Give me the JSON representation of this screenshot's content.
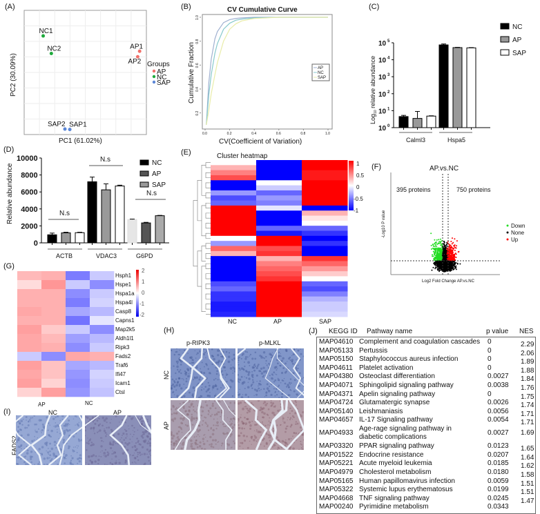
{
  "panels": {
    "A": "(A)",
    "B": "(B)",
    "C": "(C)",
    "D": "(D)",
    "E": "(E)",
    "F": "(F)",
    "G": "(G)",
    "H": "(H)",
    "I": "(I)",
    "J": "(J)"
  },
  "colors": {
    "AP": "#f0706a",
    "NC": "#1eaa3c",
    "SAP": "#5b86d6",
    "up": "#ff0000",
    "down": "#22dd22",
    "none": "#000000",
    "heat_high": "#ff0000",
    "heat_low": "#0000ff"
  },
  "chart_data": [
    {
      "id": "pca",
      "type": "scatter",
      "xlabel": "PC1 (61.02%)",
      "ylabel": "PC2 (30.09%)",
      "legend_title": "Groups",
      "legend": [
        "AP",
        "NC",
        "SAP"
      ],
      "legend_placement": "right",
      "grid": true,
      "points": [
        {
          "label": "NC1",
          "group": "NC",
          "x": -15,
          "y": 10
        },
        {
          "label": "NC2",
          "group": "NC",
          "x": -12,
          "y": 5.2
        },
        {
          "label": "AP1",
          "group": "AP",
          "x": 20.5,
          "y": 5.8
        },
        {
          "label": "AP2",
          "group": "AP",
          "x": 19.8,
          "y": 4.3
        },
        {
          "label": "SAP2",
          "group": "SAP",
          "x": -7,
          "y": -15.5
        },
        {
          "label": "SAP1",
          "group": "SAP",
          "x": -5.2,
          "y": -15.6
        }
      ],
      "xlim": [
        -22,
        23
      ],
      "ylim": [
        -17,
        17
      ]
    },
    {
      "id": "cv",
      "type": "line",
      "title": "CV Cumulative Curve",
      "xlabel": "CV(Coefficient of Variation)",
      "ylabel": "Cumulative Fraction",
      "xlim": [
        0,
        1
      ],
      "ylim": [
        0.1,
        1
      ],
      "xticks": [
        "0.0",
        "0.2",
        "0.4",
        "0.6",
        "0.8",
        "1.0"
      ],
      "yticks": [
        "0.2",
        "0.4",
        "0.6",
        "0.8",
        "1.0"
      ],
      "legend_placement": "right",
      "x": [
        0.01,
        0.03,
        0.05,
        0.08,
        0.1,
        0.15,
        0.2,
        0.25,
        0.3,
        0.4,
        0.6,
        1.0
      ],
      "series": [
        {
          "name": "AP",
          "color": "#9fb0d0",
          "values": [
            0.1,
            0.45,
            0.65,
            0.82,
            0.88,
            0.955,
            0.98,
            0.99,
            0.995,
            1,
            1,
            1
          ]
        },
        {
          "name": "NC",
          "color": "#86c9cc",
          "values": [
            0.1,
            0.35,
            0.52,
            0.7,
            0.78,
            0.9,
            0.95,
            0.975,
            0.985,
            0.995,
            1,
            1
          ]
        },
        {
          "name": "SAP",
          "color": "#e8eca8",
          "values": [
            0.1,
            0.22,
            0.36,
            0.52,
            0.62,
            0.8,
            0.9,
            0.945,
            0.97,
            0.99,
            1,
            1
          ]
        }
      ]
    },
    {
      "id": "log_bar",
      "type": "bar",
      "ylabel": "Log10 relative abundance",
      "yscale": "log",
      "ylim": [
        1,
        100000
      ],
      "yticks": [
        "10",
        "10",
        "10",
        "10",
        "10",
        "10"
      ],
      "ytick_exp": [
        "0",
        "1",
        "2",
        "3",
        "4",
        "5"
      ],
      "categories": [
        "Calml3",
        "Hspa5"
      ],
      "series": [
        {
          "name": "NC",
          "fill": "#000000",
          "values": [
            4.5,
            75000
          ],
          "errors": [
            5.3,
            85000
          ]
        },
        {
          "name": "AP",
          "fill": "#999999",
          "values": [
            3.5,
            52000
          ],
          "errors": [
            9,
            54000
          ]
        },
        {
          "name": "SAP",
          "fill": "#ffffff",
          "values": [
            4.8,
            50000
          ],
          "errors": [
            5.0,
            52000
          ]
        }
      ]
    },
    {
      "id": "abundance_bar",
      "type": "bar",
      "ylabel": "Relative abundance",
      "ylim": [
        0,
        10000
      ],
      "yticks": [
        "0",
        "2000",
        "4000",
        "6000",
        "8000",
        "10000"
      ],
      "categories": [
        "ACTB",
        "VDAC3",
        "G6PD"
      ],
      "significance": [
        "N.s",
        "N.s",
        "N.s"
      ],
      "legend": [
        {
          "name": "NC",
          "fill": "#000000"
        },
        {
          "name": "AP",
          "fill": "#555555"
        },
        {
          "name": "SAP",
          "fill": "#999999"
        }
      ],
      "bars": [
        [
          {
            "value": 950,
            "error": 1150,
            "fill": "#000000"
          },
          {
            "value": 1180,
            "error": 1250,
            "fill": "#999999"
          },
          {
            "value": 1200,
            "error": 1250,
            "fill": "#ffffff"
          }
        ],
        [
          {
            "value": 7200,
            "error": 7750,
            "fill": "#000000"
          },
          {
            "value": 6250,
            "error": 6950,
            "fill": "#999999"
          },
          {
            "value": 6700,
            "error": 6800,
            "fill": "#ffffff"
          }
        ],
        [
          {
            "value": 2750,
            "error": 2800,
            "fill": "#e6e6e6"
          },
          {
            "value": 2350,
            "error": 2420,
            "fill": "#555555"
          },
          {
            "value": 3200,
            "error": 3240,
            "fill": "#aaaaaa"
          }
        ]
      ]
    },
    {
      "id": "cluster_heatmap",
      "type": "heatmap",
      "title": "Cluster heatmap",
      "columns": [
        "NC",
        "AP",
        "SAP"
      ],
      "scale": [
        -1,
        1
      ],
      "scale_ticks": [
        "1",
        "0.5",
        "0",
        "-0.5",
        "-1"
      ],
      "rows": [
        [
          0,
          -1,
          1
        ],
        [
          0.3,
          -1,
          1
        ],
        [
          0.5,
          -1,
          0.9
        ],
        [
          0.7,
          -1,
          0.9
        ],
        [
          -1,
          0,
          1
        ],
        [
          -1,
          -0.2,
          1
        ],
        [
          -0.4,
          -0.6,
          1
        ],
        [
          -0.7,
          -0.4,
          1
        ],
        [
          -0.6,
          -0.5,
          1
        ],
        [
          1,
          -0.1,
          -1
        ],
        [
          1,
          -1,
          0.3
        ],
        [
          1,
          -1,
          0.1
        ],
        [
          1,
          -1,
          0
        ],
        [
          1,
          -0.6,
          -0.6
        ],
        [
          1,
          -0.9,
          -0.8
        ],
        [
          0,
          1,
          -1
        ],
        [
          -0.4,
          1,
          -0.8
        ],
        [
          0.6,
          0.7,
          -1
        ],
        [
          0.3,
          0.8,
          -1
        ],
        [
          -1,
          0.3,
          0.8
        ],
        [
          -1,
          0.5,
          0.6
        ],
        [
          -1,
          0.6,
          0.4
        ],
        [
          -1,
          0.7,
          0.2
        ],
        [
          -1,
          0.8,
          0
        ],
        [
          -0.7,
          1,
          -0.6
        ],
        [
          -0.6,
          1,
          -0.7
        ],
        [
          -0.8,
          1,
          -0.5
        ],
        [
          -0.8,
          1,
          -0.3
        ],
        [
          -0.9,
          1,
          -0.2
        ],
        [
          -0.9,
          1,
          -0.2
        ],
        [
          -0.85,
          1,
          -0.15
        ]
      ]
    },
    {
      "id": "volcano",
      "type": "scatter",
      "title": "AP.vs.NC",
      "xlabel": "Log2 Fold Change AP.vs.NC",
      "ylabel": "-Log10 P value",
      "annotations": [
        "395 proteins",
        "750 proteins"
      ],
      "legend": [
        "Down",
        "None",
        "Up"
      ],
      "legend_placement": "right",
      "down_count": 395,
      "up_count": 750
    },
    {
      "id": "gene_heatmap",
      "type": "heatmap",
      "scale": [
        -2,
        2
      ],
      "scale_ticks": [
        "2",
        "1",
        "0",
        "-1",
        "-2"
      ],
      "column_groups": [
        "AP",
        "NC"
      ],
      "genes": [
        "Hsph1",
        "Hspe1",
        "Hspa1a",
        "Hspa4l",
        "Casp8",
        "Capns1",
        "Map2k5",
        "Aldh1l1",
        "Ripk3",
        "Fads2",
        "Traf6",
        "Ifi47",
        "Icam1",
        "Ctsl"
      ],
      "values": [
        [
          0.8,
          0.9,
          -1.5,
          -0.6
        ],
        [
          0.4,
          1.2,
          -0.6,
          -1.3
        ],
        [
          0.9,
          0.9,
          -1.3,
          -0.6
        ],
        [
          0.9,
          0.9,
          -1.5,
          -0.5
        ],
        [
          1,
          0.9,
          -1.0,
          -0.8
        ],
        [
          0.9,
          0.9,
          -1.6,
          -0.3
        ],
        [
          1.1,
          0.6,
          -0.6,
          -1.3
        ],
        [
          1.0,
          0.8,
          -1.1,
          -0.8
        ],
        [
          1.0,
          0.9,
          -1.3,
          -0.6
        ],
        [
          -0.6,
          -1.3,
          1.0,
          0.9
        ],
        [
          1.1,
          0.7,
          -1.0,
          -0.8
        ],
        [
          1.0,
          0.7,
          -1.2,
          -0.5
        ],
        [
          1.1,
          0.5,
          -1.3,
          -0.6
        ],
        [
          0.5,
          1.1,
          -1.2,
          -0.7
        ]
      ]
    }
  ],
  "ihc_H": {
    "cols": [
      "p-RIPK3",
      "p-MLKL"
    ],
    "rows": [
      "NC",
      "AP"
    ]
  },
  "ihc_I": {
    "cols": [
      "NC",
      "AP"
    ],
    "row": "FADS2"
  },
  "kegg": {
    "headers": [
      "KEGG ID",
      "Pathway name",
      "p value",
      "NES"
    ],
    "rows": [
      [
        "MAP04610",
        "Complement and coagulation cascades",
        "0",
        "2.29"
      ],
      [
        "MAP05133",
        "Pertussis",
        "0",
        "2.06"
      ],
      [
        "MAP05150",
        "Staphylococcus aureus infection",
        "0",
        "1.89"
      ],
      [
        "MAP04611",
        "Platelet activation",
        "0",
        "1.88"
      ],
      [
        "MAP04380",
        "Osteoclast differentiation",
        "0.0027",
        "1.84"
      ],
      [
        "MAP04071",
        "Sphingolipid signaling pathway",
        "0.0038",
        "1.76"
      ],
      [
        "MAP04371",
        "Apelin signaling pathway",
        "0",
        "1.75"
      ],
      [
        "MAP04724",
        "Glutamatergic synapse",
        "0.0026",
        "1.74"
      ],
      [
        "MAP05140",
        "Leishmaniasis",
        "0.0056",
        "1.71"
      ],
      [
        "MAP04657",
        "IL-17 Signaling pathway",
        "0.0054",
        "1.71"
      ],
      [
        "MAP04933",
        "Age-rage signaling pathway in diabetic complications",
        "0.0027",
        "1.69"
      ],
      [
        "MAP03320",
        "PPAR signaling pathway",
        "0.0123",
        "1.65"
      ],
      [
        "MAP01522",
        "Endocrine resistance",
        "0.0207",
        "1.64"
      ],
      [
        "MAP05221",
        "Acute myeloid leukemia",
        "0.0185",
        "1.62"
      ],
      [
        "MAP04979",
        "Cholesterol metabolism",
        "0.0180",
        "1.58"
      ],
      [
        "MAP05165",
        "Human papillomavirus infection",
        "0.0059",
        "1.51"
      ],
      [
        "MAP05322",
        "Systemic lupus erythematosus",
        "0.0199",
        "1.51"
      ],
      [
        "MAP04668",
        "TNF signaling pathway",
        "0.0245",
        "1.47"
      ],
      [
        "MAP00240",
        "Pyrimidine metabolism",
        "0.0343",
        ""
      ]
    ]
  }
}
